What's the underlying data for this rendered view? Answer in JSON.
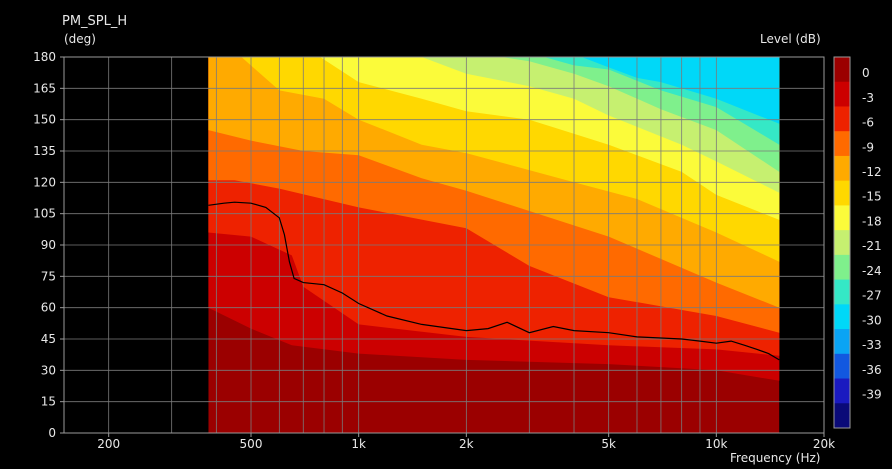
{
  "chart_data": {
    "type": "heatmap",
    "title": "PM_SPL_H",
    "ylabel": "(deg)",
    "xlabel": "Frequency  (Hz)",
    "colorbar_label": "Level  (dB)",
    "x_scale": "log",
    "xlim": [
      150,
      20000
    ],
    "ylim": [
      0,
      180
    ],
    "x_ticks": [
      {
        "value": 200,
        "label": "200"
      },
      {
        "value": 500,
        "label": "500"
      },
      {
        "value": 1000,
        "label": "1k"
      },
      {
        "value": 2000,
        "label": "2k"
      },
      {
        "value": 5000,
        "label": "5k"
      },
      {
        "value": 10000,
        "label": "10k"
      },
      {
        "value": 20000,
        "label": "20k"
      }
    ],
    "y_ticks": [
      0,
      15,
      30,
      45,
      60,
      75,
      90,
      105,
      120,
      135,
      150,
      165,
      180
    ],
    "data_x_range": [
      380,
      15000
    ],
    "colorbar": {
      "levels": [
        0,
        -3,
        -6,
        -9,
        -12,
        -15,
        -18,
        -21,
        -24,
        -27,
        -30,
        -33,
        -36,
        -39
      ],
      "colors": [
        "#9b0000",
        "#cc0000",
        "#ee2200",
        "#ff6a00",
        "#ffaa00",
        "#ffd800",
        "#fbfb3a",
        "#c6f070",
        "#7ff08c",
        "#35e8c6",
        "#00d8f8",
        "#0aa4f4",
        "#1258e0",
        "#1a1ac0",
        "#0a0a78"
      ]
    },
    "contours": [
      {
        "level": 0,
        "x": [
          380,
          500,
          650,
          1000,
          2000,
          5000,
          10000,
          15000
        ],
        "y": [
          60,
          50,
          42,
          38,
          35,
          33,
          30,
          25
        ]
      },
      {
        "level": -3,
        "x": [
          380,
          500,
          650,
          700,
          1000,
          2000,
          5000,
          10000,
          15000
        ],
        "y": [
          96,
          94,
          85,
          70,
          52,
          46,
          42,
          40,
          37
        ]
      },
      {
        "level": -6,
        "x": [
          380,
          450,
          600,
          1000,
          2000,
          3000,
          5000,
          10000,
          15000
        ],
        "y": [
          121,
          121,
          117,
          108,
          98,
          80,
          65,
          56,
          48
        ]
      },
      {
        "level": -9,
        "x": [
          380,
          500,
          700,
          1000,
          1500,
          2000,
          5000,
          10000,
          15000
        ],
        "y": [
          145,
          140,
          135,
          133,
          122,
          116,
          94,
          72,
          60
        ]
      },
      {
        "level": -12,
        "x": [
          470,
          600,
          800,
          1000,
          1500,
          2000,
          4000,
          6000,
          10000,
          15000
        ],
        "y": [
          180,
          164,
          160,
          150,
          138,
          134,
          120,
          112,
          96,
          82
        ]
      },
      {
        "level": -15,
        "x": [
          780,
          1000,
          1500,
          2000,
          3000,
          5000,
          8000,
          10000,
          15000
        ],
        "y": [
          180,
          168,
          160,
          154,
          150,
          138,
          125,
          114,
          102
        ]
      },
      {
        "level": -18,
        "x": [
          1500,
          2000,
          3000,
          4000,
          5000,
          8000,
          10000,
          15000
        ],
        "y": [
          180,
          172,
          166,
          160,
          152,
          138,
          130,
          115
        ]
      },
      {
        "level": -21,
        "x": [
          2500,
          3000,
          4000,
          5000,
          7000,
          10000,
          15000
        ],
        "y": [
          180,
          178,
          172,
          166,
          155,
          145,
          125
        ]
      },
      {
        "level": -24,
        "x": [
          3300,
          4000,
          5000,
          7000,
          10000,
          15000
        ],
        "y": [
          180,
          176,
          174,
          164,
          156,
          138
        ]
      },
      {
        "level": -27,
        "x": [
          4200,
          5000,
          6000,
          7000,
          10000,
          15000
        ],
        "y": [
          180,
          175,
          170,
          168,
          160,
          148
        ]
      }
    ],
    "minus6_line": {
      "x": [
        380,
        420,
        450,
        500,
        550,
        600,
        620,
        640,
        660,
        700,
        800,
        900,
        1000,
        1200,
        1500,
        2000,
        2300,
        2600,
        3000,
        3500,
        4000,
        5000,
        6000,
        7000,
        8000,
        9000,
        10000,
        11000,
        12000,
        13000,
        14000,
        15000
      ],
      "y": [
        109,
        110,
        110.5,
        110,
        108,
        103,
        95,
        82,
        74,
        72,
        71,
        67,
        62,
        56,
        52,
        49,
        50,
        53,
        48,
        51,
        49,
        48,
        46,
        45.5,
        45,
        44,
        43,
        44,
        42,
        40,
        38,
        35
      ]
    }
  }
}
